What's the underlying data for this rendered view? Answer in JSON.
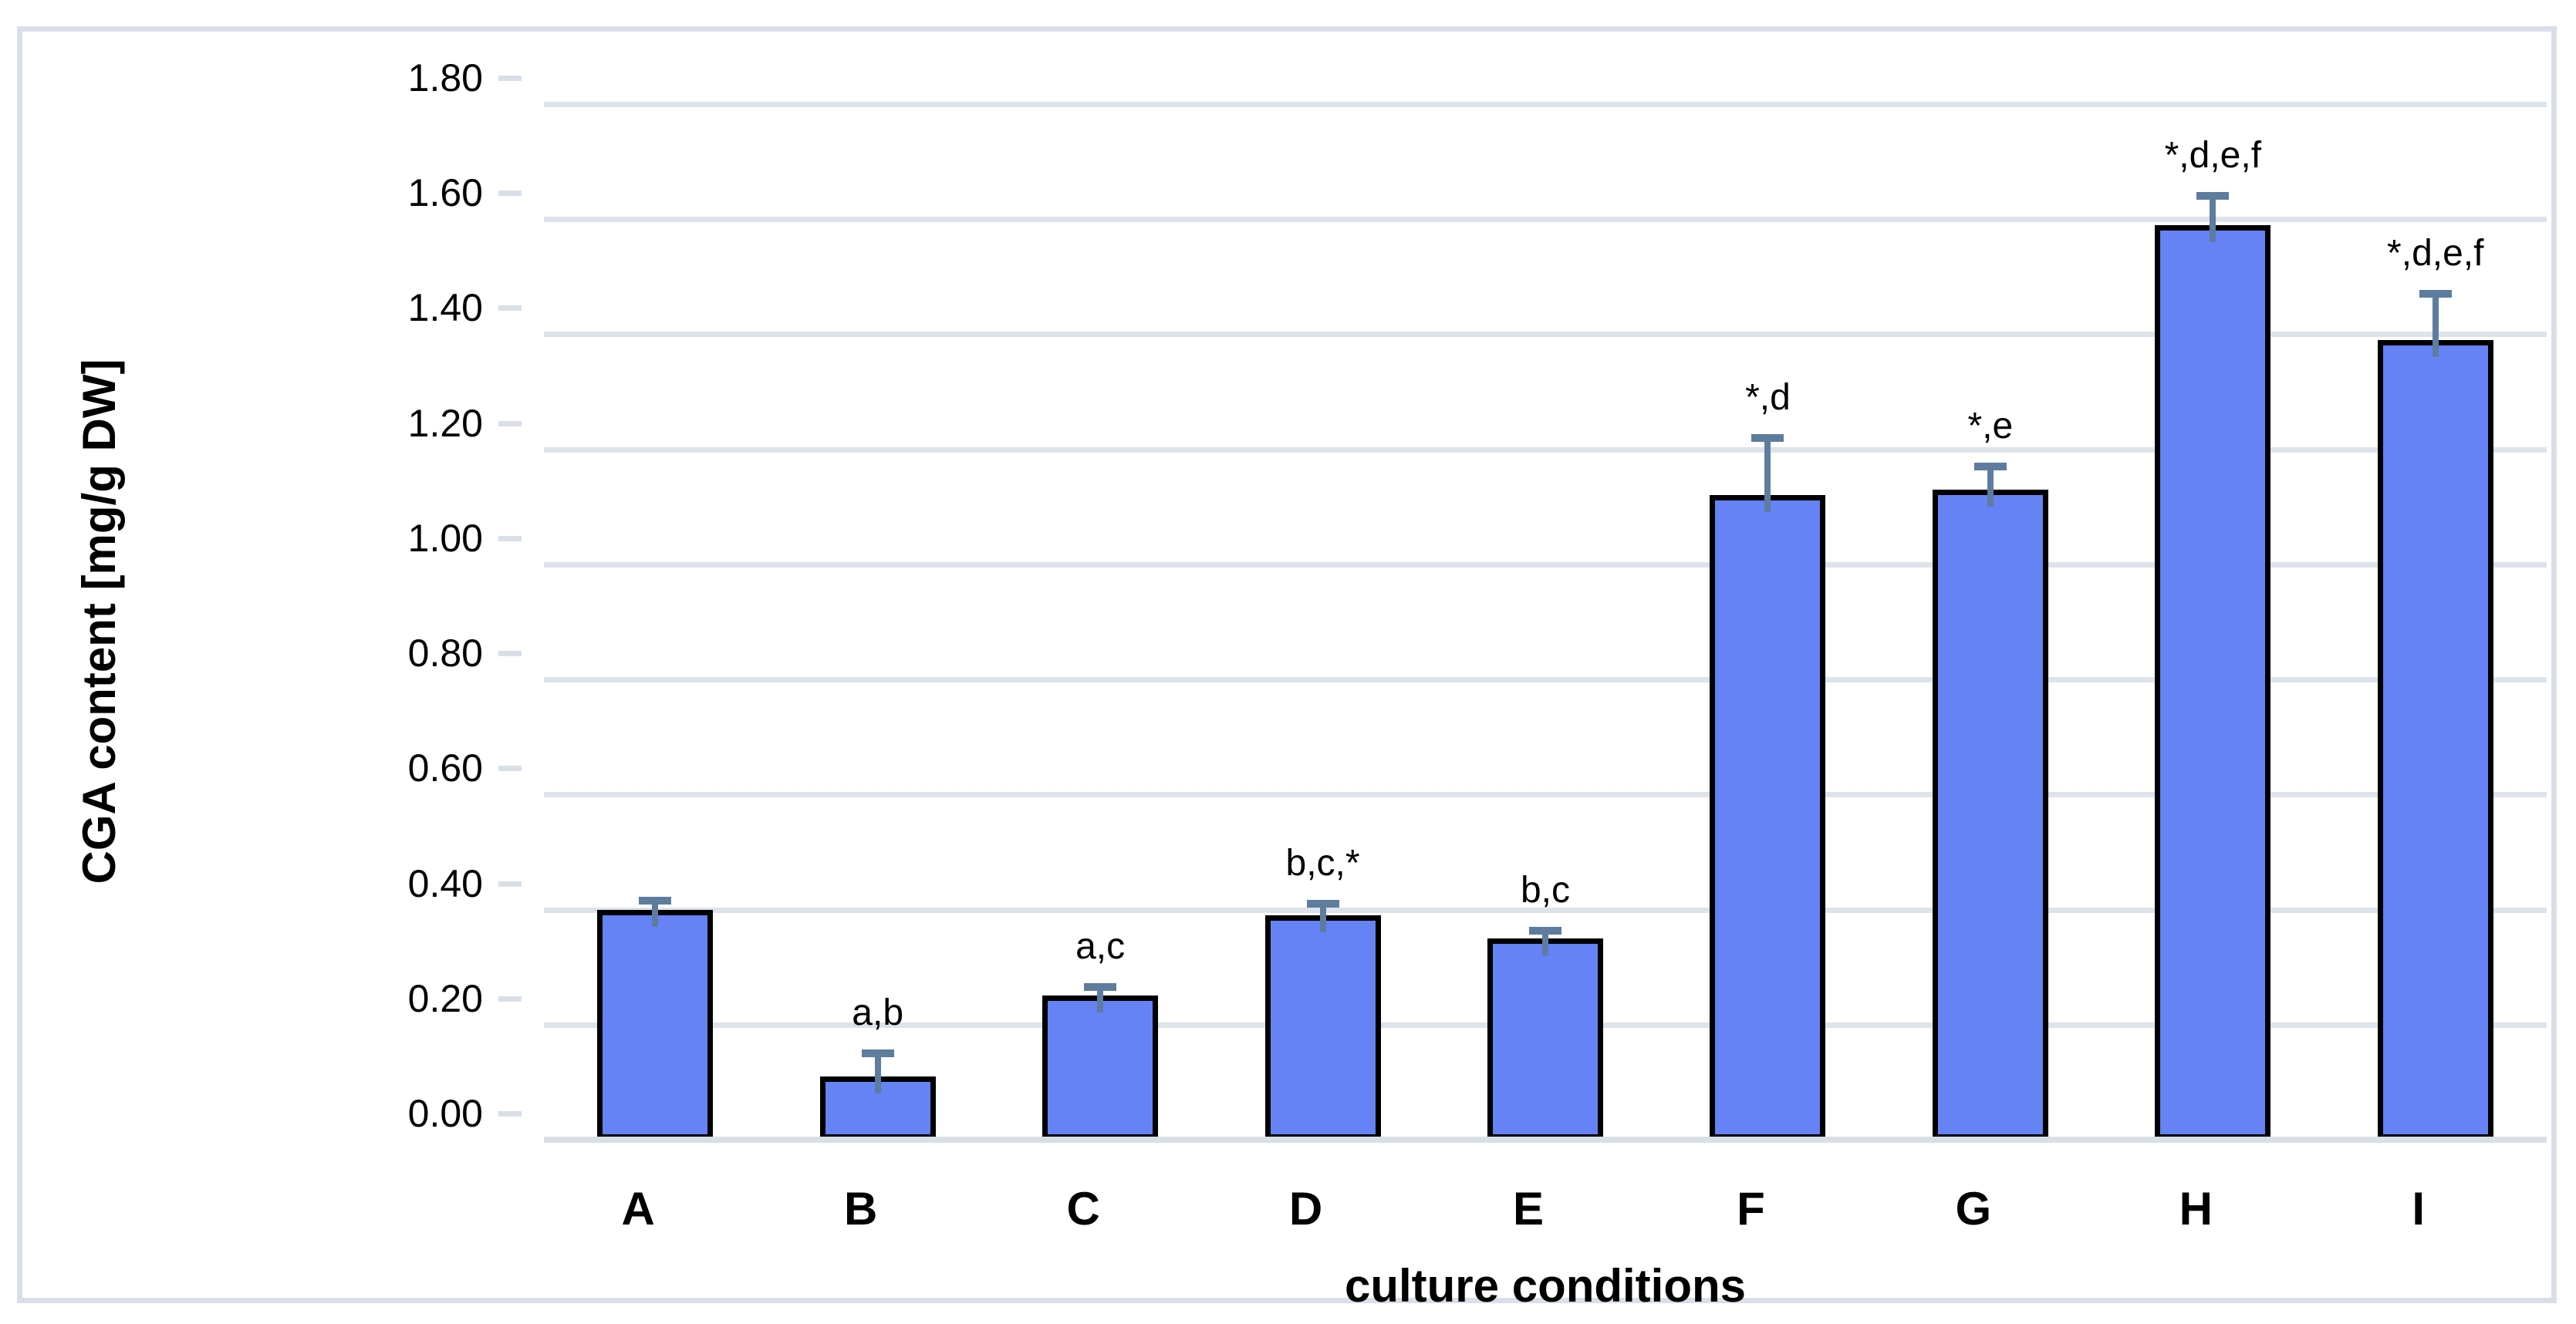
{
  "chart_data": {
    "type": "bar",
    "title": "",
    "categories": [
      "A",
      "B",
      "C",
      "D",
      "E",
      "F",
      "G",
      "H",
      "I"
    ],
    "values": [
      0.4,
      0.11,
      0.25,
      0.39,
      0.35,
      1.12,
      1.13,
      1.59,
      1.39
    ],
    "errors_plus": [
      0.015,
      0.04,
      0.015,
      0.02,
      0.013,
      0.1,
      0.04,
      0.05,
      0.08
    ],
    "annotations": [
      "",
      "a,b",
      "a,c",
      "b,c,*",
      "b,c",
      "*,d",
      "*,e",
      "*,d,e,f",
      "*,d,e,f"
    ],
    "xlabel": "culture conditions",
    "ylabel": "CGA content [mg/g DW]",
    "ylim": [
      0.0,
      1.8
    ],
    "ytick_step": 0.2,
    "ytick_labels": [
      "0.00",
      "0.20",
      "0.40",
      "0.60",
      "0.80",
      "1.00",
      "1.20",
      "1.40",
      "1.60",
      "1.80"
    ],
    "grid": true,
    "legend_position": "none"
  },
  "colors": {
    "bar_fill": "#6583f5",
    "bar_border": "#000000",
    "error_bar": "#5e7c9e",
    "gridline": "#dde3ea",
    "frame_border": "#d9dee9",
    "text": "#000000",
    "background": "#ffffff"
  }
}
